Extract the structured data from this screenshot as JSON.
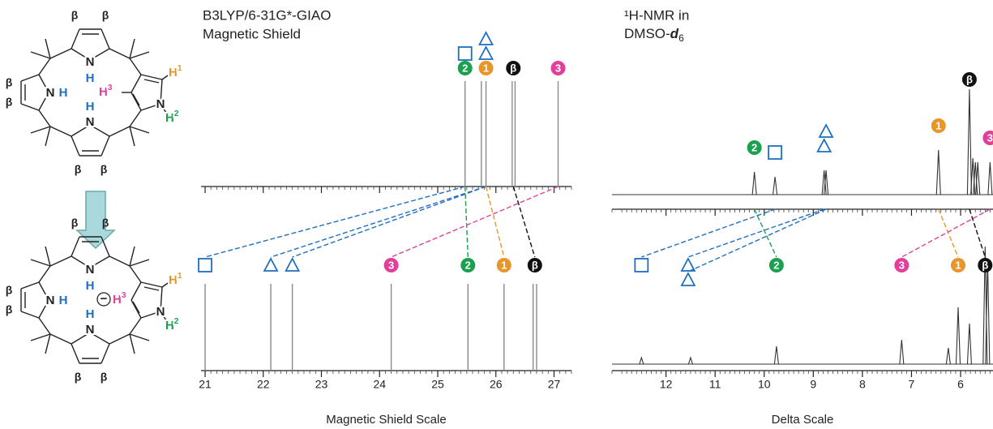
{
  "structure_labels": {
    "beta": "β",
    "n": "N",
    "h": "H",
    "sup1": "1",
    "sup2": "2",
    "sup3": "3",
    "charge": "−"
  },
  "chart_data": [
    {
      "type": "stick",
      "title": [
        "B3LYP/6-31G*-GIAO",
        "Magnetic Shield"
      ],
      "xlabel": "Magnetic Shield Scale",
      "xlim": [
        20.93,
        27.3
      ],
      "xticks": [
        21,
        22,
        23,
        24,
        25,
        26,
        27
      ],
      "color": "#8a8a8a",
      "spectra": [
        {
          "sticks": [
            25.47,
            25.75,
            25.83,
            26.28,
            26.33,
            27.07
          ],
          "labels": [
            {
              "x": 25.47,
              "shape": "square",
              "color": "#1f6fc0"
            },
            {
              "x": 25.83,
              "shape": "triangle",
              "color": "#1f6fc0"
            },
            {
              "x": 25.83,
              "shape": "triangle",
              "color": "#1f6fc0"
            },
            {
              "x": 25.47,
              "text": "2",
              "color": "#1aa04f"
            },
            {
              "x": 25.83,
              "text": "1",
              "color": "#e8962a"
            },
            {
              "x": 26.3,
              "text": "β",
              "color": "#111111"
            },
            {
              "x": 27.07,
              "text": "3",
              "color": "#e0409a"
            }
          ]
        },
        {
          "sticks": [
            21.0,
            22.13,
            22.5,
            24.2,
            25.52,
            26.14,
            26.64,
            26.7
          ],
          "labels": [
            {
              "x": 21.0,
              "shape": "square",
              "color": "#1f6fc0"
            },
            {
              "x": 22.13,
              "shape": "triangle",
              "color": "#1f6fc0"
            },
            {
              "x": 22.5,
              "shape": "triangle",
              "color": "#1f6fc0"
            },
            {
              "x": 25.52,
              "text": "2",
              "color": "#1aa04f"
            },
            {
              "x": 26.14,
              "text": "1",
              "color": "#e8962a"
            },
            {
              "x": 26.67,
              "text": "β",
              "color": "#111111"
            },
            {
              "x": 24.2,
              "text": "3",
              "color": "#e0409a"
            }
          ]
        }
      ]
    },
    {
      "type": "spectrum",
      "title": {
        "line1": "¹H-NMR in",
        "line2": "DMSO-",
        "italic": "d",
        "subscript": "6"
      },
      "xlabel": "Delta Scale",
      "xlim": [
        13.1,
        5.34
      ],
      "xticks": [
        12,
        11,
        10,
        9,
        8,
        7,
        6
      ],
      "color": "#333333",
      "spectra": [
        {
          "peaks": [
            {
              "x": 10.2,
              "height": 28
            },
            {
              "x": 9.78,
              "height": 22
            },
            {
              "x": 8.78,
              "height": 30
            },
            {
              "x": 8.74,
              "height": 30
            },
            {
              "x": 6.45,
              "height": 55
            },
            {
              "x": 5.82,
              "height": 130
            },
            {
              "x": 5.75,
              "height": 45
            },
            {
              "x": 5.7,
              "height": 40
            },
            {
              "x": 5.65,
              "height": 40
            },
            {
              "x": 5.4,
              "height": 40
            }
          ],
          "labels": [
            {
              "x": 9.78,
              "shape": "square",
              "color": "#1f6fc0"
            },
            {
              "x": 8.78,
              "shape": "triangle",
              "color": "#1f6fc0"
            },
            {
              "x": 8.74,
              "shape": "triangle",
              "color": "#1f6fc0"
            },
            {
              "x": 10.2,
              "text": "2",
              "color": "#1aa04f"
            },
            {
              "x": 6.45,
              "text": "1",
              "color": "#e8962a"
            },
            {
              "x": 5.82,
              "text": "β",
              "color": "#111111"
            },
            {
              "x": 5.4,
              "text": "3",
              "color": "#e0409a"
            }
          ]
        },
        {
          "peaks": [
            {
              "x": 12.5,
              "height": 8
            },
            {
              "x": 11.5,
              "height": 8
            },
            {
              "x": 9.75,
              "height": 22
            },
            {
              "x": 7.2,
              "height": 30
            },
            {
              "x": 6.25,
              "height": 20
            },
            {
              "x": 6.05,
              "height": 70
            },
            {
              "x": 5.82,
              "height": 50
            },
            {
              "x": 5.5,
              "height": 145
            },
            {
              "x": 5.45,
              "height": 130
            }
          ],
          "labels": [
            {
              "x": 12.5,
              "shape": "square",
              "color": "#1f6fc0"
            },
            {
              "x": 11.55,
              "shape": "triangle",
              "color": "#1f6fc0"
            },
            {
              "x": 11.55,
              "shape": "triangle",
              "color": "#1f6fc0"
            },
            {
              "x": 9.75,
              "text": "2",
              "color": "#1aa04f"
            },
            {
              "x": 6.05,
              "text": "1",
              "color": "#e8962a"
            },
            {
              "x": 5.5,
              "text": "β",
              "color": "#111111"
            },
            {
              "x": 7.2,
              "text": "3",
              "color": "#e0409a"
            }
          ]
        }
      ]
    }
  ]
}
